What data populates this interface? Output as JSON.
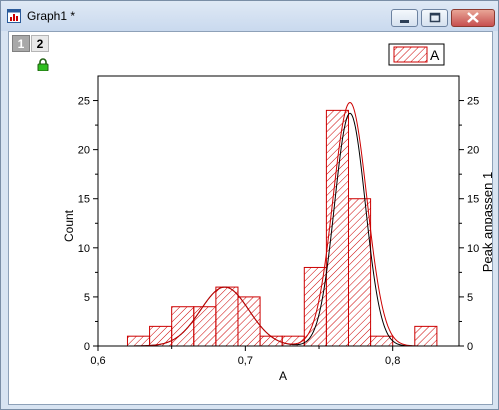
{
  "window": {
    "title": "Graph1 *",
    "icon": "graph-window-icon",
    "controls": [
      "minimize-icon",
      "maximize-icon",
      "close-icon"
    ]
  },
  "layers": {
    "tabs": [
      {
        "label": "1",
        "active": false
      },
      {
        "label": "2",
        "active": true
      }
    ],
    "lock_icon": "lock-icon"
  },
  "colors": {
    "bar": "#cc0000",
    "fit_black": "#000000",
    "fit_red": "#cc0000",
    "background": "#ffffff"
  },
  "chart_data": {
    "type": "bar",
    "subtype": "histogram-with-peak-fit",
    "xlabel": "A",
    "ylabel": "Count",
    "ylabel_right": "Peak anpassen 1",
    "xlim": [
      0.6,
      0.845
    ],
    "ylim": [
      0,
      27.5
    ],
    "xticks": [
      "0,6",
      "0,7",
      "0,8"
    ],
    "xtick_values": [
      0.6,
      0.7,
      0.8
    ],
    "yticks": [
      "0",
      "5",
      "10",
      "15",
      "20",
      "25"
    ],
    "ytick_values": [
      0,
      5,
      10,
      15,
      20,
      25
    ],
    "bin_width": 0.015,
    "bins": [
      {
        "x0": 0.62,
        "value": 1
      },
      {
        "x0": 0.635,
        "value": 2
      },
      {
        "x0": 0.65,
        "value": 4
      },
      {
        "x0": 0.665,
        "value": 4
      },
      {
        "x0": 0.68,
        "value": 6
      },
      {
        "x0": 0.695,
        "value": 5
      },
      {
        "x0": 0.71,
        "value": 1
      },
      {
        "x0": 0.725,
        "value": 1
      },
      {
        "x0": 0.74,
        "value": 8
      },
      {
        "x0": 0.755,
        "value": 24
      },
      {
        "x0": 0.77,
        "value": 15
      },
      {
        "x0": 0.785,
        "value": 1
      },
      {
        "x0": 0.8,
        "value": 0
      },
      {
        "x0": 0.815,
        "value": 2
      }
    ],
    "legend": {
      "entries": [
        "A"
      ],
      "placement": "top-right"
    },
    "fits": [
      {
        "color": "black",
        "peaks": [
          {
            "center": 0.686,
            "amplitude": 6.0,
            "sigma": 0.0165
          },
          {
            "center": 0.771,
            "amplitude": 23.7,
            "sigma": 0.0105
          }
        ]
      },
      {
        "color": "red",
        "peaks": [
          {
            "center": 0.686,
            "amplitude": 6.0,
            "sigma": 0.0165
          },
          {
            "center": 0.771,
            "amplitude": 24.8,
            "sigma": 0.0115
          }
        ]
      }
    ]
  }
}
